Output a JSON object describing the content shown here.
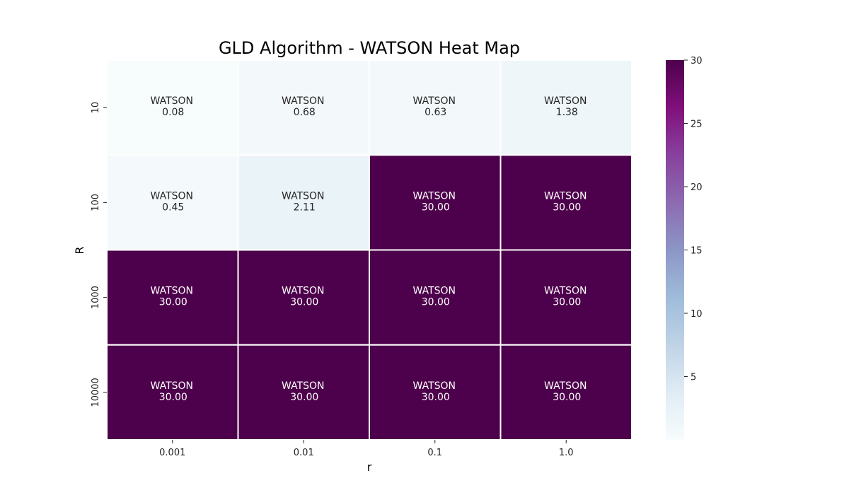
{
  "chart_data": {
    "type": "heatmap",
    "title": "GLD Algorithm - WATSON Heat Map",
    "xlabel": "r",
    "ylabel": "R",
    "x_categories": [
      "0.001",
      "0.01",
      "0.1",
      "1.0"
    ],
    "y_categories": [
      "10",
      "100",
      "1000",
      "10000"
    ],
    "cell_prefix": "WATSON",
    "values": [
      [
        0.08,
        0.68,
        0.63,
        1.38
      ],
      [
        0.45,
        2.11,
        30.0,
        30.0
      ],
      [
        30.0,
        30.0,
        30.0,
        30.0
      ],
      [
        30.0,
        30.0,
        30.0,
        30.0
      ]
    ],
    "colorbar": {
      "min": 0,
      "max": 30,
      "ticks": [
        5,
        10,
        15,
        20,
        25,
        30
      ],
      "colormap": "BuPu",
      "stops": [
        "#f7fcfd",
        "#e0ecf4",
        "#bfd3e6",
        "#9ebcda",
        "#8c96c6",
        "#8c6bb1",
        "#88419d",
        "#810f7c",
        "#4d004b"
      ]
    }
  }
}
